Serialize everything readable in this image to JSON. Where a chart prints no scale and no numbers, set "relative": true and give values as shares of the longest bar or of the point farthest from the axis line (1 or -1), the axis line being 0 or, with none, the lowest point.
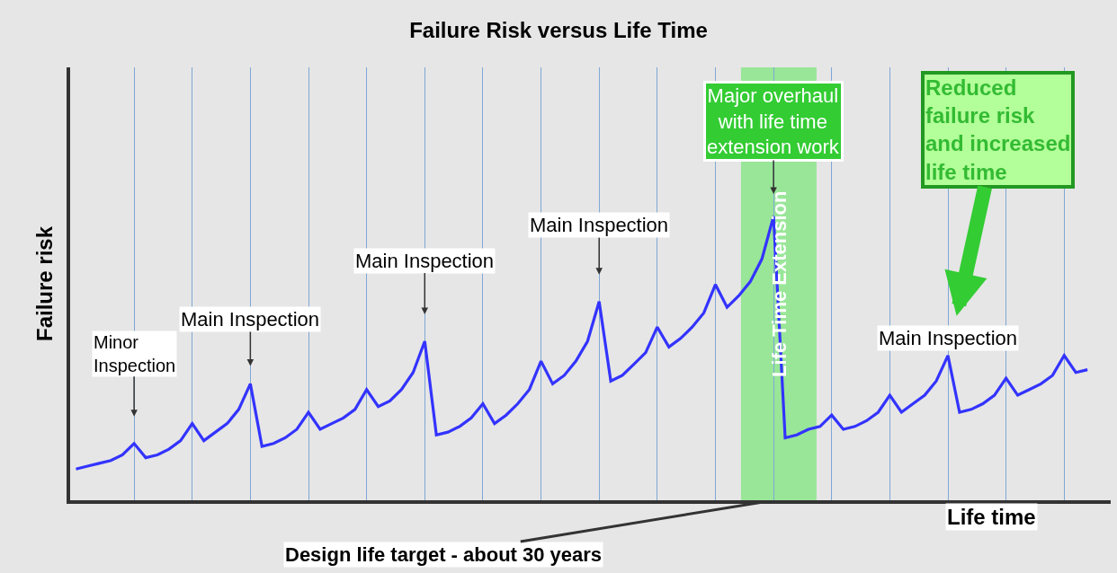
{
  "chart_data": {
    "type": "line",
    "title": "Failure Risk versus Life Time",
    "xlabel": "Life time",
    "ylabel": "Failure risk",
    "relative": true,
    "categories": [
      null,
      null,
      null,
      null,
      null,
      null,
      null,
      null,
      null,
      null,
      null,
      null,
      null,
      null,
      null,
      null,
      null,
      null,
      null,
      null,
      null,
      null,
      null,
      null,
      null,
      null,
      null,
      null,
      null,
      null,
      null,
      null,
      null,
      null,
      null,
      null,
      null,
      null,
      null,
      null,
      null,
      null,
      null,
      null,
      null,
      null,
      null,
      null,
      null,
      null,
      null,
      null,
      null,
      null,
      null,
      null,
      null,
      null,
      null,
      null,
      null,
      null,
      null,
      null,
      null,
      null,
      null,
      null,
      null,
      null,
      null,
      null,
      null,
      null,
      null,
      null,
      null,
      null,
      null,
      null,
      null,
      null,
      null,
      null,
      null,
      null,
      null,
      null
    ],
    "series": [
      {
        "color": "#3333ff",
        "values": [
          0.11,
          0.12,
          0.13,
          0.14,
          0.16,
          0.2,
          0.15,
          0.16,
          0.18,
          0.21,
          0.27,
          0.21,
          0.24,
          0.27,
          0.32,
          0.41,
          0.19,
          0.2,
          0.22,
          0.25,
          0.31,
          0.25,
          0.27,
          0.29,
          0.32,
          0.39,
          0.33,
          0.35,
          0.39,
          0.45,
          0.56,
          0.23,
          0.24,
          0.26,
          0.29,
          0.34,
          0.27,
          0.3,
          0.34,
          0.39,
          0.49,
          0.41,
          0.44,
          0.49,
          0.56,
          0.7,
          0.42,
          0.44,
          0.48,
          0.52,
          0.61,
          0.54,
          0.57,
          0.61,
          0.66,
          0.76,
          0.68,
          0.72,
          0.77,
          0.85,
          1.0,
          0.22,
          0.23,
          0.25,
          0.26,
          0.3,
          0.25,
          0.26,
          0.28,
          0.31,
          0.37,
          0.31,
          0.34,
          0.37,
          0.42,
          0.51,
          0.31,
          0.32,
          0.34,
          0.37,
          0.43,
          0.37,
          0.39,
          0.41,
          0.44,
          0.51,
          0.45,
          0.46
        ]
      }
    ],
    "grid": "x",
    "line_style": "solid",
    "annotations": [
      "Minor\nInspection",
      "Main Inspection",
      "Main Inspection",
      "Main Inspection",
      "Main Inspection",
      "Major overhaul\nwith life time\nextension work",
      "Reduced\nfailure risk\nand increased\nlife time",
      "Design life target - about 30 years",
      "Life Time Extension"
    ]
  }
}
